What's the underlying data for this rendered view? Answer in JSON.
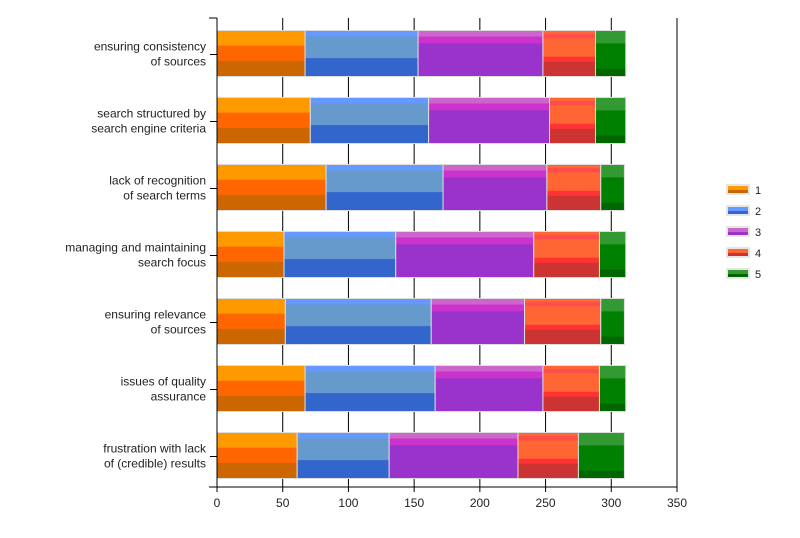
{
  "chart_data": {
    "type": "bar",
    "orientation": "horizontal",
    "stacked": true,
    "title": "",
    "xlabel": "",
    "ylabel": "",
    "xlim": [
      0,
      350
    ],
    "x_ticks": [
      0,
      50,
      100,
      150,
      200,
      250,
      300,
      350
    ],
    "grid": true,
    "legend_position": "right",
    "categories": [
      [
        "ensuring consistency",
        "of sources"
      ],
      [
        "search structured by",
        "search engine criteria"
      ],
      [
        "lack of recognition",
        "of search terms"
      ],
      [
        "managing and maintaining",
        "search focus"
      ],
      [
        "ensuring relevance",
        "of sources"
      ],
      [
        "issues of quality",
        "assurance"
      ],
      [
        "frustration with lack",
        "of (credible) results"
      ]
    ],
    "series": [
      {
        "name": "1",
        "color": "#ff9900",
        "values": [
          67,
          71,
          83,
          51,
          52,
          67,
          61
        ]
      },
      {
        "name": "2",
        "color": "#6699cc",
        "values": [
          86,
          90,
          89,
          85,
          111,
          99,
          70
        ]
      },
      {
        "name": "3",
        "color": "#9933cc",
        "values": [
          95,
          92,
          79,
          105,
          71,
          82,
          98
        ]
      },
      {
        "name": "4",
        "color": "#ff6633",
        "values": [
          40,
          35,
          41,
          50,
          58,
          43,
          46
        ]
      },
      {
        "name": "5",
        "color": "#008000",
        "values": [
          23,
          23,
          18,
          20,
          18,
          20,
          35
        ]
      }
    ]
  }
}
